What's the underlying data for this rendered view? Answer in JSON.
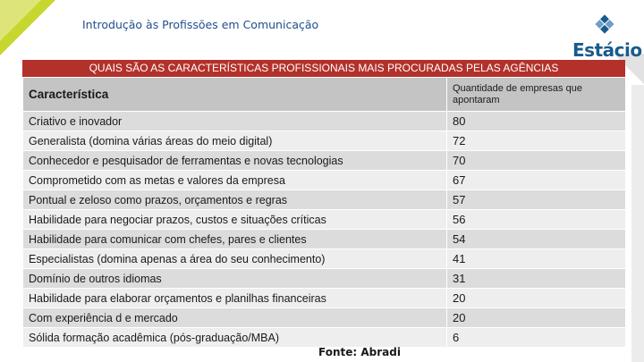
{
  "slide": {
    "title": "Introdução às Profissões em Comunicação",
    "logo_text": "Estácio"
  },
  "table": {
    "banner": "QUAIS SÃO AS CARACTERÍSTICAS PROFISSIONAIS MAIS PROCURADAS PELAS AGÊNCIAS",
    "headers": [
      "Característica",
      "Quantidade de empresas que apontaram"
    ],
    "rows": [
      {
        "label": "Criativo e inovador",
        "value": "80"
      },
      {
        "label": "Generalista (domina várias áreas do meio digital)",
        "value": "72"
      },
      {
        "label": "Conhecedor e pesquisador de ferramentas e novas tecnologias",
        "value": "70"
      },
      {
        "label": "Comprometido com as metas e valores da empresa",
        "value": "67"
      },
      {
        "label": "Pontual e zeloso como prazos, orçamentos e regras",
        "value": "57"
      },
      {
        "label": "Habilidade para negociar prazos, custos e situações críticas",
        "value": "56"
      },
      {
        "label": "Habilidade para comunicar com chefes, pares e clientes",
        "value": "54"
      },
      {
        "label": "Especialistas (domina apenas a área do seu conhecimento)",
        "value": "41"
      },
      {
        "label": "Domínio de outros idiomas",
        "value": "31"
      },
      {
        "label": "Habilidade para elaborar orçamentos e planilhas financeiras",
        "value": "20"
      },
      {
        "label": "Com experiência d e mercado",
        "value": "20"
      },
      {
        "label": "Sólida formação acadêmica (pós-graduação/MBA)",
        "value": "6"
      }
    ],
    "source": "Fonte: Abradi"
  },
  "colors": {
    "banner": "#b3312b",
    "accent_green": "#c7d72f",
    "brand_blue": "#1a5b8c",
    "title_blue": "#1f4e8c"
  }
}
